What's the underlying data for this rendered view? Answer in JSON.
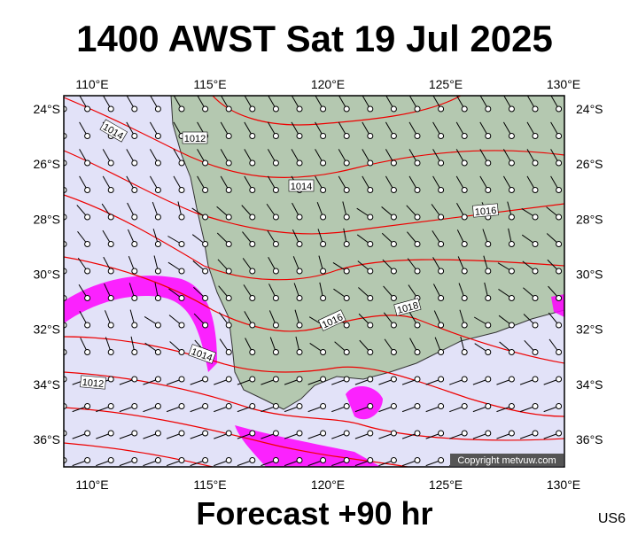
{
  "header": {
    "title": "1400 AWST Sat 19 Jul 2025"
  },
  "footer": {
    "forecast": "Forecast +90 hr",
    "code": "US6"
  },
  "map": {
    "longitudes": [
      {
        "value": 110,
        "label": "110°E"
      },
      {
        "value": 115,
        "label": "115°E"
      },
      {
        "value": 120,
        "label": "120°E"
      },
      {
        "value": 125,
        "label": "125°E"
      },
      {
        "value": 130,
        "label": "130°E"
      }
    ],
    "latitudes": [
      {
        "value": 24,
        "label": "24°S"
      },
      {
        "value": 26,
        "label": "26°S"
      },
      {
        "value": 28,
        "label": "28°S"
      },
      {
        "value": 30,
        "label": "30°S"
      },
      {
        "value": 32,
        "label": "32°S"
      },
      {
        "value": 34,
        "label": "34°S"
      },
      {
        "value": 36,
        "label": "36°S"
      }
    ],
    "isobar_labels": [
      "1014",
      "1012",
      "1014",
      "1016",
      "1016",
      "1018",
      "1014",
      "1012"
    ],
    "copyright": "Copyright metvuw.com"
  }
}
